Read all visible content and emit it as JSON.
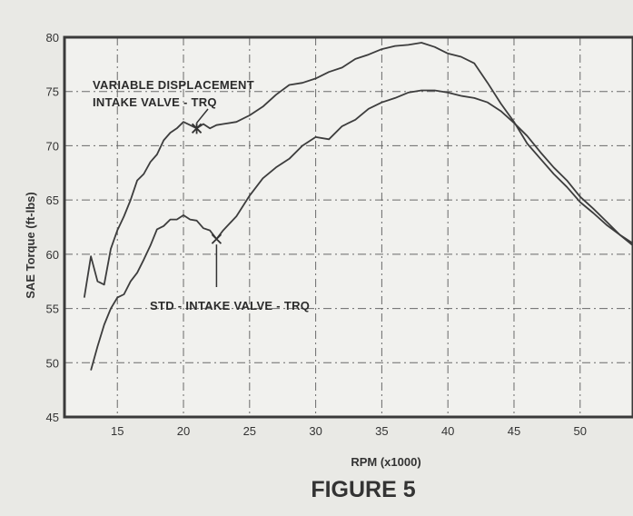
{
  "figure_caption": "FIGURE 5",
  "chart_data": {
    "type": "line",
    "title": "",
    "xlabel": "RPM (x1000)",
    "ylabel": "SAE Torque (ft-lbs)",
    "xlim": [
      11,
      54
    ],
    "ylim": [
      45,
      80
    ],
    "x_ticks": [
      15,
      20,
      25,
      30,
      35,
      40,
      45,
      50
    ],
    "y_ticks": [
      45,
      50,
      55,
      60,
      65,
      70,
      75,
      80
    ],
    "grid": true,
    "series": [
      {
        "name": "VARIABLE DISPLACEMENT INTAKE VALVE - TRQ",
        "marker_x": 21,
        "marker_y": 71.6,
        "x": [
          12.5,
          13,
          13.5,
          14,
          14.5,
          15,
          15.5,
          16,
          16.5,
          17,
          17.5,
          18,
          18.5,
          19,
          19.5,
          20,
          20.5,
          21,
          21.5,
          22,
          22.5,
          23,
          24,
          25,
          26,
          27,
          28,
          29,
          30,
          31,
          32,
          33,
          34,
          35,
          36,
          37,
          38,
          39,
          40,
          41,
          42,
          43,
          44,
          45,
          46,
          47,
          48,
          49,
          50,
          51,
          52,
          53,
          54
        ],
        "y": [
          56,
          59.8,
          57.5,
          57.2,
          60.5,
          62.2,
          63.5,
          65,
          66.8,
          67.4,
          68.5,
          69.2,
          70.5,
          71.2,
          71.6,
          72.2,
          71.9,
          71.6,
          72,
          71.6,
          71.9,
          72,
          72.2,
          72.8,
          73.6,
          74.7,
          75.6,
          75.8,
          76.2,
          76.8,
          77.2,
          78,
          78.4,
          78.9,
          79.2,
          79.3,
          79.5,
          79.1,
          78.5,
          78.2,
          77.6,
          75.8,
          73.9,
          72.2,
          70.2,
          68.8,
          67.4,
          66.2,
          64.8,
          63.8,
          62.7,
          61.8,
          60.8
        ]
      },
      {
        "name": "STD - INTAKE VALVE - TRQ",
        "marker_x": 22.5,
        "marker_y": 61.4,
        "x": [
          13,
          13.5,
          14,
          14.5,
          15,
          15.5,
          16,
          16.5,
          17,
          17.5,
          18,
          18.5,
          19,
          19.5,
          20,
          20.5,
          21,
          21.5,
          22,
          22.5,
          23,
          24,
          25,
          26,
          27,
          28,
          29,
          30,
          31,
          32,
          33,
          34,
          35,
          36,
          37,
          38,
          39,
          40,
          41,
          42,
          43,
          44,
          45,
          46,
          47,
          48,
          49,
          50,
          51,
          52,
          53,
          54
        ],
        "y": [
          49.3,
          51.5,
          53.5,
          55,
          56,
          56.3,
          57.5,
          58.3,
          59.5,
          60.8,
          62.3,
          62.6,
          63.2,
          63.2,
          63.6,
          63.2,
          63.1,
          62.4,
          62.2,
          61.4,
          62.2,
          63.5,
          65.4,
          67,
          68,
          68.8,
          70,
          70.8,
          70.6,
          71.8,
          72.4,
          73.4,
          74,
          74.4,
          74.9,
          75.1,
          75.1,
          74.9,
          74.6,
          74.4,
          74,
          73.2,
          72.1,
          70.9,
          69.4,
          68,
          66.8,
          65.3,
          64.2,
          63,
          61.8,
          61
        ]
      }
    ]
  }
}
